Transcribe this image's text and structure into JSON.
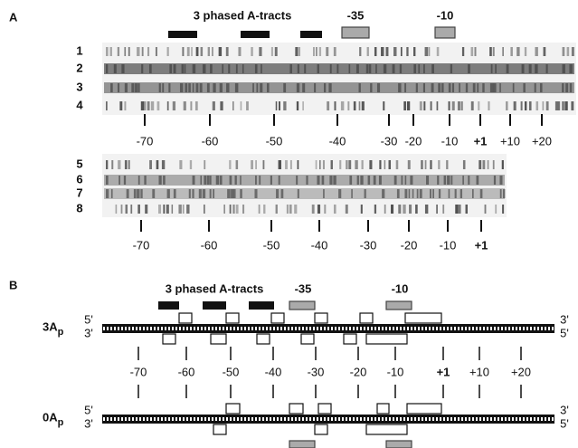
{
  "panel_a": {
    "label": "A",
    "header": {
      "a_tracts": "3 phased A-tracts",
      "minus35": "-35",
      "minus10": "-10"
    },
    "gel_top": {
      "lanes": [
        "1",
        "2",
        "3",
        "4"
      ],
      "positions": [
        "-70",
        "-60",
        "-50",
        "-40",
        "-30",
        "-20",
        "-10",
        "+1",
        "+10",
        "+20"
      ]
    },
    "gel_bottom": {
      "lanes": [
        "5",
        "6",
        "7",
        "8"
      ],
      "positions": [
        "-70",
        "-60",
        "-50",
        "-40",
        "-30",
        "-20",
        "-10",
        "+1"
      ]
    }
  },
  "panel_b": {
    "label": "B",
    "header": {
      "a_tracts": "3 phased A-tracts",
      "minus35": "-35",
      "minus10": "-10"
    },
    "dna_top": {
      "name": "3A",
      "subscript": "p",
      "left_ends": [
        "5'",
        "3'"
      ],
      "right_ends": [
        "3'",
        "5'"
      ]
    },
    "positions": [
      "-70",
      "-60",
      "-50",
      "-40",
      "-30",
      "-20",
      "-10",
      "+1",
      "+10",
      "+20"
    ],
    "dna_bottom": {
      "name": "0A",
      "subscript": "p",
      "left_ends": [
        "5'",
        "3'"
      ],
      "right_ends": [
        "3'",
        "5'"
      ]
    }
  }
}
